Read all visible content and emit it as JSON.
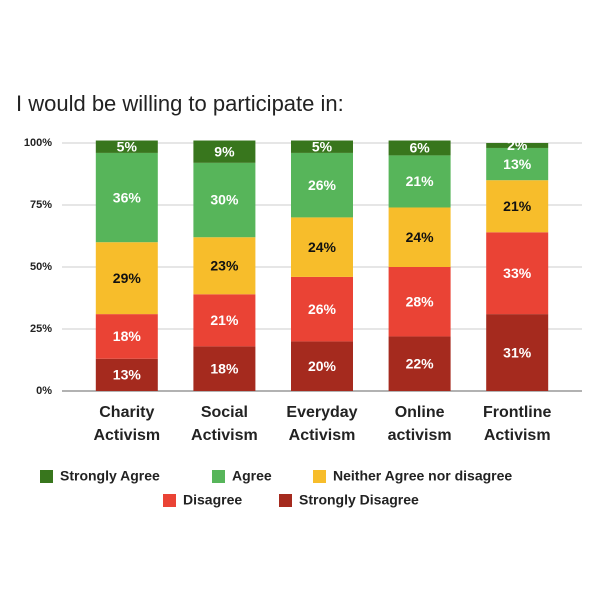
{
  "chart_data": {
    "type": "stacked_bar",
    "title": "I would be willing to participate in:",
    "categories": [
      "Charity Activism",
      "Social Activism",
      "Everyday Activism",
      "Online activism",
      "Frontline Activism"
    ],
    "series": [
      {
        "name": "Strongly Agree",
        "color": "#38761d",
        "values": [
          5,
          9,
          5,
          6,
          2
        ],
        "value_labels": [
          "5%",
          "9%",
          "5%",
          "6%",
          "2%"
        ]
      },
      {
        "name": "Agree",
        "color": "#57b55a",
        "values": [
          36,
          30,
          26,
          21,
          13
        ],
        "value_labels": [
          "36%",
          "30%",
          "26%",
          "21%",
          "13%"
        ]
      },
      {
        "name": "Neither Agree nor disagree",
        "color": "#f7bd2b",
        "values": [
          29,
          23,
          24,
          24,
          21
        ],
        "value_labels": [
          "29%",
          "23%",
          "24%",
          "24%",
          "21%"
        ]
      },
      {
        "name": "Disagree",
        "color": "#ea4335",
        "values": [
          18,
          21,
          26,
          28,
          33
        ],
        "value_labels": [
          "18%",
          "21%",
          "26%",
          "28%",
          "33%"
        ]
      },
      {
        "name": "Strongly Disagree",
        "color": "#a52a1e",
        "values": [
          13,
          18,
          20,
          22,
          31
        ],
        "value_labels": [
          "13%",
          "18%",
          "20%",
          "22%",
          "31%"
        ]
      }
    ],
    "ylim": [
      0,
      100
    ],
    "yticks": [
      {
        "value": 0,
        "label": "0%"
      },
      {
        "value": 25,
        "label": "25%"
      },
      {
        "value": 50,
        "label": "50%"
      },
      {
        "value": 75,
        "label": "75%"
      },
      {
        "value": 100,
        "label": "100%"
      }
    ],
    "grid": true
  }
}
